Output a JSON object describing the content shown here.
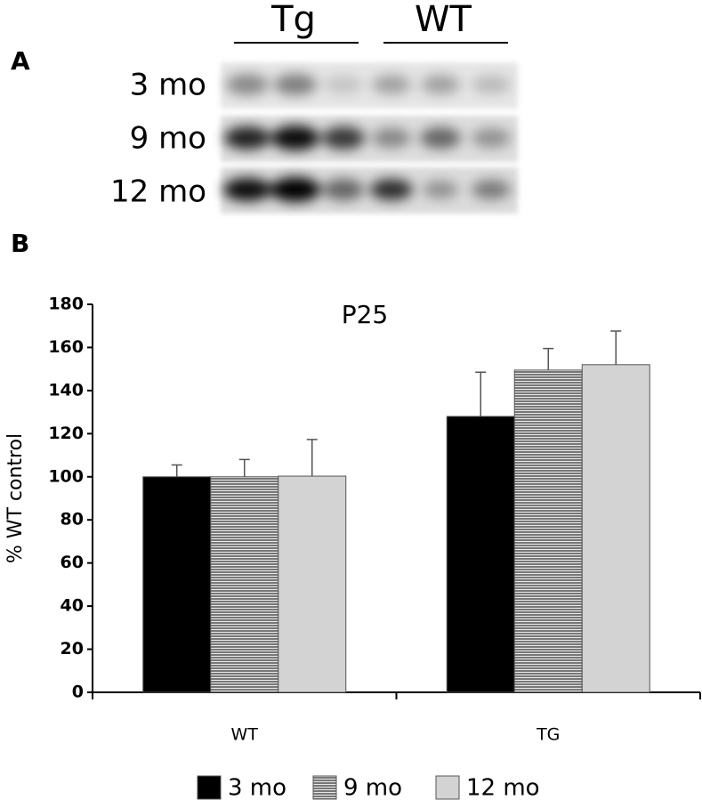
{
  "panel_a": {
    "label": "A",
    "groups": [
      "Tg",
      "WT"
    ],
    "rows": [
      "3 mo",
      "9 mo",
      "12 mo"
    ]
  },
  "panel_b": {
    "label": "B"
  },
  "chart_data": {
    "type": "bar",
    "title": "P25",
    "y_label": "% WT control",
    "categories": [
      "WT",
      "TG"
    ],
    "series": [
      {
        "name": "3 mo",
        "color": "#000000",
        "values": [
          100,
          128
        ],
        "errors": [
          5.5,
          20.5
        ]
      },
      {
        "name": "9 mo",
        "color": "#777777",
        "hatch": "horizontal",
        "values": [
          100,
          149.5
        ],
        "errors": [
          8,
          10
        ]
      },
      {
        "name": "12 mo",
        "color": "#d3d3d3",
        "values": [
          100.3,
          152
        ],
        "errors": [
          17,
          15.6
        ]
      }
    ],
    "ylim": [
      0,
      180
    ],
    "yticks": [
      0,
      20,
      40,
      60,
      80,
      100,
      120,
      140,
      160,
      180
    ],
    "grid": false
  }
}
